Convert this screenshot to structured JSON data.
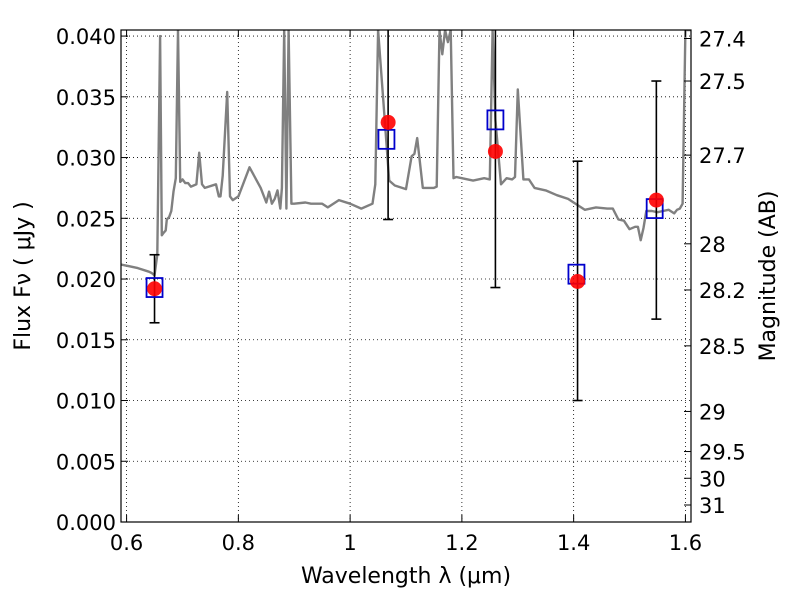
{
  "chart_data": {
    "type": "scatter",
    "title": "",
    "xlabel": "Wavelength  λ (μm)",
    "ylabel": "Flux  Fν  ( μJy )",
    "y2label": "Magnitude (AB)",
    "xlim": [
      0.59,
      1.61
    ],
    "ylim": [
      0.0,
      0.0405
    ],
    "grid": true,
    "x_ticks": [
      0.6,
      0.8,
      1.0,
      1.2,
      1.4,
      1.6
    ],
    "x_tick_labels": [
      "0.6",
      "0.8",
      "1",
      "1.2",
      "1.4",
      "1.6"
    ],
    "y_ticks": [
      0.0,
      0.005,
      0.01,
      0.015,
      0.02,
      0.025,
      0.03,
      0.035,
      0.04
    ],
    "y_tick_labels": [
      "0.000",
      "0.005",
      "0.010",
      "0.015",
      "0.020",
      "0.025",
      "0.030",
      "0.035",
      "0.040"
    ],
    "mag_ticks": [
      {
        "label": "27.4",
        "flux": 0.0398
      },
      {
        "label": "27.5",
        "flux": 0.0363
      },
      {
        "label": "27.7",
        "flux": 0.0302
      },
      {
        "label": "28",
        "flux": 0.0229
      },
      {
        "label": "28.2",
        "flux": 0.0191
      },
      {
        "label": "28.5",
        "flux": 0.0145
      },
      {
        "label": "29",
        "flux": 0.0091
      },
      {
        "label": "29.5",
        "flux": 0.0058
      },
      {
        "label": "30",
        "flux": 0.0036
      },
      {
        "label": "31",
        "flux": 0.0014
      }
    ],
    "series": [
      {
        "kind": "spectrum",
        "color": "#808080",
        "x": [
          0.59,
          0.62,
          0.64,
          0.645,
          0.65,
          0.655,
          0.66,
          0.663,
          0.666,
          0.67,
          0.672,
          0.676,
          0.68,
          0.684,
          0.688,
          0.692,
          0.696,
          0.7,
          0.705,
          0.71,
          0.715,
          0.72,
          0.725,
          0.73,
          0.735,
          0.74,
          0.76,
          0.765,
          0.768,
          0.772,
          0.78,
          0.785,
          0.79,
          0.8,
          0.82,
          0.84,
          0.85,
          0.855,
          0.86,
          0.865,
          0.87,
          0.875,
          0.878,
          0.882,
          0.886,
          0.89,
          0.895,
          0.9,
          0.92,
          0.93,
          0.94,
          0.95,
          0.96,
          0.98,
          1.0,
          1.02,
          1.04,
          1.045,
          1.05,
          1.07,
          1.08,
          1.1,
          1.11,
          1.115,
          1.12,
          1.13,
          1.15,
          1.155,
          1.16,
          1.165,
          1.17,
          1.175,
          1.18,
          1.185,
          1.19,
          1.2,
          1.22,
          1.24,
          1.25,
          1.255,
          1.26,
          1.27,
          1.28,
          1.29,
          1.295,
          1.3,
          1.31,
          1.32,
          1.33,
          1.35,
          1.37,
          1.39,
          1.4,
          1.42,
          1.44,
          1.46,
          1.47,
          1.48,
          1.49,
          1.5,
          1.51,
          1.515,
          1.52,
          1.525,
          1.53,
          1.54,
          1.55,
          1.56,
          1.57,
          1.58,
          1.585,
          1.59,
          1.595,
          1.6,
          1.605,
          1.61
        ],
        "y": [
          0.0212,
          0.0209,
          0.0206,
          0.0205,
          0.0203,
          0.022,
          0.04,
          0.0236,
          0.0238,
          0.024,
          0.0249,
          0.0251,
          0.0256,
          0.0272,
          0.0283,
          0.0405,
          0.028,
          0.0282,
          0.0279,
          0.0279,
          0.0276,
          0.0277,
          0.0278,
          0.0304,
          0.0278,
          0.0275,
          0.0278,
          0.0268,
          0.0268,
          0.0285,
          0.0354,
          0.0268,
          0.0265,
          0.0268,
          0.0292,
          0.0275,
          0.0263,
          0.0272,
          0.0262,
          0.0266,
          0.0273,
          0.0258,
          0.0275,
          0.0405,
          0.0258,
          0.0405,
          0.0262,
          0.0262,
          0.0263,
          0.0262,
          0.0262,
          0.0262,
          0.0259,
          0.0265,
          0.0262,
          0.0258,
          0.0262,
          0.0278,
          0.0405,
          0.0281,
          0.0277,
          0.0274,
          0.0301,
          0.0303,
          0.0316,
          0.0275,
          0.0275,
          0.0276,
          0.0405,
          0.0385,
          0.0405,
          0.0395,
          0.0405,
          0.0283,
          0.0284,
          0.0283,
          0.0281,
          0.0283,
          0.0282,
          0.0405,
          0.0331,
          0.0278,
          0.0283,
          0.0282,
          0.0284,
          0.0356,
          0.0282,
          0.0282,
          0.0275,
          0.0273,
          0.0269,
          0.0266,
          0.0263,
          0.0257,
          0.0259,
          0.0258,
          0.0258,
          0.0249,
          0.0248,
          0.0241,
          0.0243,
          0.0243,
          0.0232,
          0.0242,
          0.0256,
          0.0256,
          0.0255,
          0.0256,
          0.0257,
          0.0254,
          0.0257,
          0.0258,
          0.0262,
          0.0405,
          0.0405,
          0.0405
        ]
      },
      {
        "kind": "model",
        "marker": "square",
        "color": "#0000cc",
        "x": [
          0.65,
          1.065,
          1.26,
          1.405,
          1.545
        ],
        "y": [
          0.0193,
          0.0315,
          0.0331,
          0.0204,
          0.0258
        ]
      },
      {
        "kind": "observed",
        "marker": "circle",
        "color": "#ff0000",
        "x": [
          0.65,
          1.068,
          1.26,
          1.407,
          1.548
        ],
        "y": [
          0.0192,
          0.0329,
          0.0305,
          0.0198,
          0.0265
        ],
        "err_low": [
          0.0164,
          0.0249,
          0.0193,
          0.01,
          0.0167
        ],
        "err_high": [
          0.022,
          0.0405,
          0.0405,
          0.0297,
          0.0363
        ]
      }
    ]
  }
}
